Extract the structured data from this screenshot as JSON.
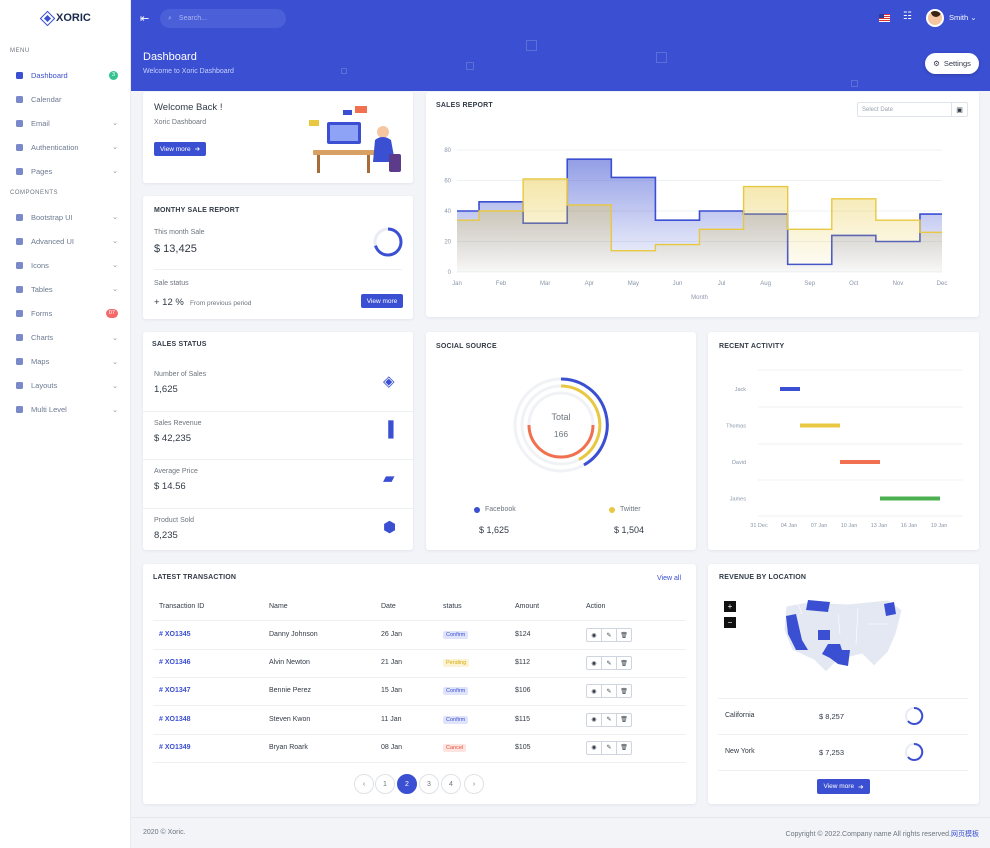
{
  "app": {
    "brand": "XORIC"
  },
  "sidebar": {
    "menu_title": "MENU",
    "components_title": "COMPONENTS",
    "items": [
      {
        "label": "Dashboard",
        "badge": "3",
        "badge_color": "#34c38f",
        "active": true
      },
      {
        "label": "Calendar"
      },
      {
        "label": "Email",
        "chevron": true
      },
      {
        "label": "Authentication",
        "chevron": true
      },
      {
        "label": "Pages",
        "chevron": true
      }
    ],
    "component_items": [
      {
        "label": "Bootstrap UI",
        "chevron": true
      },
      {
        "label": "Advanced UI",
        "chevron": true
      },
      {
        "label": "Icons",
        "chevron": true
      },
      {
        "label": "Tables",
        "chevron": true
      },
      {
        "label": "Forms",
        "badge": "07",
        "badge_color": "#f46a6a"
      },
      {
        "label": "Charts",
        "chevron": true
      },
      {
        "label": "Maps",
        "chevron": true
      },
      {
        "label": "Layouts",
        "chevron": true
      },
      {
        "label": "Multi Level",
        "chevron": true
      }
    ]
  },
  "topbar": {
    "search_placeholder": "Search...",
    "user_name": "Smith"
  },
  "header": {
    "title": "Dashboard",
    "subtitle": "Welcome to Xoric Dashboard",
    "settings_label": "Settings"
  },
  "welcome": {
    "title": "Welcome Back !",
    "subtitle": "Xoric Dashboard",
    "button": "View more"
  },
  "monthly": {
    "title": "MONTHY SALE REPORT",
    "month_label": "This month Sale",
    "month_value": "$ 13,425",
    "status_label": "Sale status",
    "growth": "+ 12 %",
    "growth_note": "From previous period",
    "button": "View more",
    "ring_fraction": 0.7
  },
  "sales_report": {
    "title": "SALES REPORT",
    "date_placeholder": "Select Date",
    "xlabel": "Month"
  },
  "chart_data": {
    "type": "area",
    "title": "SALES REPORT",
    "xlabel": "Month",
    "categories": [
      "Jan",
      "Feb",
      "Mar",
      "Apr",
      "May",
      "Jun",
      "Jul",
      "Aug",
      "Sep",
      "Oct",
      "Nov",
      "Dec"
    ],
    "yticks": [
      0,
      20,
      40,
      60,
      80
    ],
    "ylim": [
      0,
      80
    ],
    "series": [
      {
        "values": [
          40,
          46,
          32,
          74,
          62,
          34,
          40,
          38,
          5,
          24,
          20,
          38
        ],
        "color": "#3a4fd1"
      },
      {
        "values": [
          34,
          40,
          61,
          44,
          14,
          18,
          28,
          56,
          28,
          48,
          34,
          26
        ],
        "color": "#e8c840"
      }
    ]
  },
  "sales_status": {
    "title": "SALES STATUS",
    "items": [
      {
        "label": "Number of Sales",
        "value": "1,625",
        "icon": "layers-icon"
      },
      {
        "label": "Sales Revenue",
        "value": "$ 42,235",
        "icon": "bar-chart-icon"
      },
      {
        "label": "Average Price",
        "value": "$ 14.56",
        "icon": "ruler-icon"
      },
      {
        "label": "Product Sold",
        "value": "8,235",
        "icon": "cube-icon"
      }
    ]
  },
  "social": {
    "title": "SOCIAL SOURCE",
    "center_label": "Total",
    "center_value": "166",
    "sources": [
      {
        "name": "Facebook",
        "value": "$ 1,625",
        "color": "#3a4fd1"
      },
      {
        "name": "Twitter",
        "value": "$ 1,504",
        "color": "#e8c840"
      }
    ]
  },
  "activity": {
    "title": "RECENT ACTIVITY",
    "rows": [
      {
        "name": "Jack",
        "color": "#3a4fd1"
      },
      {
        "name": "Thomas",
        "color": "#e8c840"
      },
      {
        "name": "David",
        "color": "#f0704f"
      },
      {
        "name": "James",
        "color": "#4caf50"
      }
    ],
    "ticks": [
      "31 Dec",
      "04 Jan",
      "07 Jan",
      "10 Jan",
      "13 Jan",
      "16 Jan",
      "19 Jan"
    ]
  },
  "transactions": {
    "title": "LATEST TRANSACTION",
    "view_all": "View all",
    "headers": [
      "Transaction ID",
      "Name",
      "Date",
      "status",
      "Amount",
      "Action"
    ],
    "rows": [
      {
        "id": "# XO1345",
        "name": "Danny Johnson",
        "date": "26 Jan",
        "status": "Confirm",
        "amount": "$124"
      },
      {
        "id": "# XO1346",
        "name": "Alvin Newton",
        "date": "21 Jan",
        "status": "Pending",
        "amount": "$112"
      },
      {
        "id": "# XO1347",
        "name": "Bennie Perez",
        "date": "15 Jan",
        "status": "Confirm",
        "amount": "$106"
      },
      {
        "id": "# XO1348",
        "name": "Steven Kwon",
        "date": "11 Jan",
        "status": "Confirm",
        "amount": "$115"
      },
      {
        "id": "# XO1349",
        "name": "Bryan Roark",
        "date": "08 Jan",
        "status": "Cancel",
        "amount": "$105"
      }
    ],
    "pages": [
      "1",
      "2",
      "3",
      "4"
    ],
    "current_page": "2",
    "prev": "‹",
    "next": "›"
  },
  "revenue": {
    "title": "REVENUE BY LOCATION",
    "zoom_in": "+",
    "zoom_out": "−",
    "rows": [
      {
        "state": "California",
        "value": "$ 8,257"
      },
      {
        "state": "New York",
        "value": "$ 7,253"
      }
    ],
    "button": "View more"
  },
  "footer": {
    "left": "2020 © Xoric.",
    "right": "Copyright © 2022.Company name All rights reserved.",
    "link": "网页模板"
  }
}
